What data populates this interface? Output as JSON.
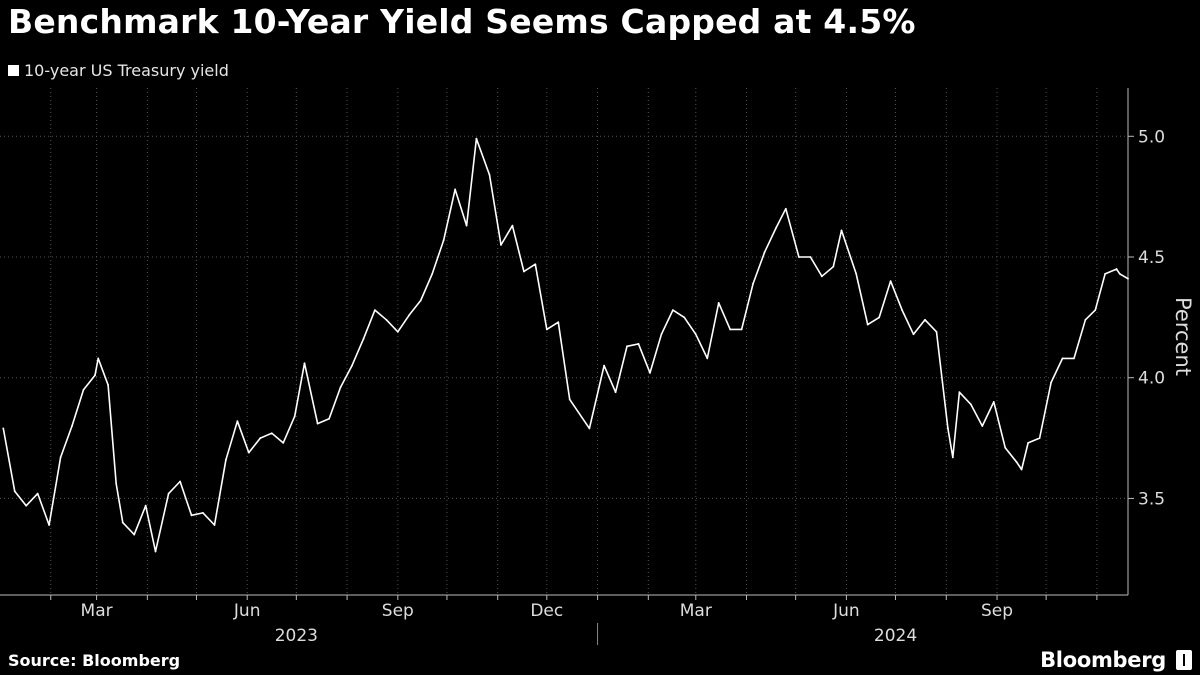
{
  "title": "Benchmark 10-Year Yield Seems Capped at 4.5%",
  "source": "Source: Bloomberg",
  "brand": "Bloomberg",
  "colors": {
    "background": "#000000",
    "series": "#ffffff",
    "grid": "#555555"
  },
  "chart_data": {
    "type": "line",
    "title": "Benchmark 10-Year Yield Seems Capped at 4.5%",
    "xlabel": "",
    "ylabel": "Percent",
    "ylim": [
      3.1,
      5.2
    ],
    "xlim": [
      "2023-01-01",
      "2024-11-20"
    ],
    "grid": true,
    "legend": "top-left",
    "y_axis_side": "right",
    "yticks": [
      3.5,
      4.0,
      4.5,
      5.0
    ],
    "ytick_labels": [
      "3.5",
      "4.0",
      "4.5",
      "5.0"
    ],
    "month_ticks": [
      {
        "date": "2023-03-01",
        "label": "Mar"
      },
      {
        "date": "2023-06-01",
        "label": "Jun"
      },
      {
        "date": "2023-09-01",
        "label": "Sep"
      },
      {
        "date": "2023-12-01",
        "label": "Dec"
      },
      {
        "date": "2024-03-01",
        "label": "Mar"
      },
      {
        "date": "2024-06-01",
        "label": "Jun"
      },
      {
        "date": "2024-09-01",
        "label": "Sep"
      }
    ],
    "grid_dates": [
      "2023-02-01",
      "2023-03-01",
      "2023-04-01",
      "2023-05-01",
      "2023-06-01",
      "2023-07-01",
      "2023-08-01",
      "2023-09-01",
      "2023-10-01",
      "2023-11-01",
      "2023-12-01",
      "2024-01-01",
      "2024-02-01",
      "2024-03-01",
      "2024-04-01",
      "2024-05-01",
      "2024-06-01",
      "2024-07-01",
      "2024-08-01",
      "2024-09-01",
      "2024-10-01",
      "2024-11-01"
    ],
    "year_labels": [
      {
        "year": "2023",
        "center": "2023-07-01"
      },
      {
        "year": "2024",
        "center": "2024-07-01"
      }
    ],
    "year_divider": "2024-01-01",
    "series": [
      {
        "name": "10-year US Treasury yield",
        "x": [
          "2023-01-03",
          "2023-01-10",
          "2023-01-17",
          "2023-01-24",
          "2023-01-31",
          "2023-02-07",
          "2023-02-14",
          "2023-02-21",
          "2023-02-28",
          "2023-03-02",
          "2023-03-08",
          "2023-03-13",
          "2023-03-17",
          "2023-03-24",
          "2023-03-31",
          "2023-04-06",
          "2023-04-14",
          "2023-04-21",
          "2023-04-28",
          "2023-05-05",
          "2023-05-12",
          "2023-05-19",
          "2023-05-26",
          "2023-06-02",
          "2023-06-09",
          "2023-06-16",
          "2023-06-23",
          "2023-06-30",
          "2023-07-06",
          "2023-07-14",
          "2023-07-21",
          "2023-07-28",
          "2023-08-04",
          "2023-08-11",
          "2023-08-18",
          "2023-08-25",
          "2023-09-01",
          "2023-09-08",
          "2023-09-15",
          "2023-09-22",
          "2023-09-29",
          "2023-10-06",
          "2023-10-13",
          "2023-10-19",
          "2023-10-27",
          "2023-11-03",
          "2023-11-10",
          "2023-11-17",
          "2023-11-24",
          "2023-12-01",
          "2023-12-08",
          "2023-12-15",
          "2023-12-27",
          "2024-01-05",
          "2024-01-12",
          "2024-01-19",
          "2024-01-26",
          "2024-02-02",
          "2024-02-09",
          "2024-02-16",
          "2024-02-23",
          "2024-03-01",
          "2024-03-08",
          "2024-03-15",
          "2024-03-22",
          "2024-03-29",
          "2024-04-05",
          "2024-04-12",
          "2024-04-19",
          "2024-04-25",
          "2024-05-03",
          "2024-05-10",
          "2024-05-17",
          "2024-05-24",
          "2024-05-29",
          "2024-06-07",
          "2024-06-14",
          "2024-06-21",
          "2024-06-28",
          "2024-07-05",
          "2024-07-12",
          "2024-07-19",
          "2024-07-26",
          "2024-08-02",
          "2024-08-05",
          "2024-08-09",
          "2024-08-16",
          "2024-08-23",
          "2024-08-30",
          "2024-09-06",
          "2024-09-13",
          "2024-09-16",
          "2024-09-20",
          "2024-09-27",
          "2024-10-04",
          "2024-10-11",
          "2024-10-18",
          "2024-10-25",
          "2024-10-31",
          "2024-11-06",
          "2024-11-13",
          "2024-11-15",
          "2024-11-20"
        ],
        "values": [
          3.79,
          3.53,
          3.47,
          3.52,
          3.39,
          3.67,
          3.8,
          3.95,
          4.01,
          4.08,
          3.97,
          3.56,
          3.4,
          3.35,
          3.47,
          3.28,
          3.52,
          3.57,
          3.43,
          3.44,
          3.39,
          3.66,
          3.82,
          3.69,
          3.75,
          3.77,
          3.73,
          3.84,
          4.06,
          3.81,
          3.83,
          3.96,
          4.05,
          4.16,
          4.28,
          4.24,
          4.19,
          4.26,
          4.32,
          4.43,
          4.57,
          4.78,
          4.63,
          4.99,
          4.84,
          4.55,
          4.63,
          4.44,
          4.47,
          4.2,
          4.23,
          3.91,
          3.79,
          4.05,
          3.94,
          4.13,
          4.14,
          4.02,
          4.18,
          4.28,
          4.25,
          4.18,
          4.08,
          4.31,
          4.2,
          4.2,
          4.39,
          4.52,
          4.62,
          4.7,
          4.5,
          4.5,
          4.42,
          4.46,
          4.61,
          4.43,
          4.22,
          4.25,
          4.4,
          4.28,
          4.18,
          4.24,
          4.19,
          3.79,
          3.67,
          3.94,
          3.89,
          3.8,
          3.9,
          3.71,
          3.65,
          3.62,
          3.73,
          3.75,
          3.98,
          4.08,
          4.08,
          4.24,
          4.28,
          4.43,
          4.45,
          4.43,
          4.41
        ]
      }
    ]
  }
}
